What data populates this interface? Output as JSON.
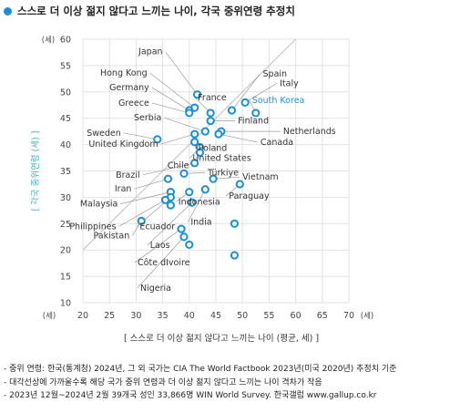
{
  "title": "스스로 더 이상 젊지 않다고 느끼는 나이, 각국 중위연령 추정치",
  "colors": {
    "accent": "#1a8fd6",
    "highlight": "#1a8fd6",
    "ylabel": "#3fb0c9",
    "grid": "#e2e2e2",
    "diagonal": "#c8c8c8"
  },
  "chart_data": {
    "type": "scatter",
    "xlabel": "[ 스스로 더 이상 젊지 않다고 느끼는 나이 (평균, 세) ]",
    "ylabel": "[ 각국 중위연령 (세) ]",
    "x_unit_label": "(세)",
    "y_unit_label": "(세)",
    "xlim": [
      20,
      70
    ],
    "ylim": [
      10,
      60
    ],
    "xticks": [
      "20",
      "25",
      "30",
      "35",
      "40",
      "45",
      "50",
      "55",
      "60",
      "65",
      "70"
    ],
    "yticks": [
      "10",
      "15",
      "20",
      "25",
      "30",
      "35",
      "40",
      "45",
      "50",
      "55",
      "60"
    ],
    "grid": true,
    "diagonal_reference": true,
    "points": [
      {
        "label": "Japan",
        "x": 41.5,
        "y": 49.5
      },
      {
        "label": "Hong Kong",
        "x": 41.0,
        "y": 47.0
      },
      {
        "label": "Germany",
        "x": 40.0,
        "y": 46.5
      },
      {
        "label": "Greece",
        "x": 40.0,
        "y": 46.0
      },
      {
        "label": "France",
        "x": 44.0,
        "y": 46.0
      },
      {
        "label": "Spain",
        "x": 48.0,
        "y": 46.5
      },
      {
        "label": "Italy",
        "x": 50.5,
        "y": 48.0
      },
      {
        "label": "South Korea",
        "x": 52.5,
        "y": 46.0,
        "highlight": true
      },
      {
        "label": "Finland",
        "x": 44.0,
        "y": 44.5
      },
      {
        "label": "Serbia",
        "x": 43.0,
        "y": 42.5
      },
      {
        "label": "Netherlands",
        "x": 46.0,
        "y": 42.5
      },
      {
        "label": "Canada",
        "x": 45.5,
        "y": 42.0
      },
      {
        "label": "Sweden",
        "x": 34.0,
        "y": 41.0
      },
      {
        "label": "United Kingdom",
        "x": 41.0,
        "y": 42.0
      },
      {
        "label": "Poland",
        "x": 41.0,
        "y": 40.5
      },
      {
        "label": "United States",
        "x": 42.0,
        "y": 39.5
      },
      {
        "label": "Chile",
        "x": 42.0,
        "y": 38.5
      },
      {
        "label": "Brazil",
        "x": 41.0,
        "y": 36.5
      },
      {
        "label": "Türkiye",
        "x": 39.0,
        "y": 34.5
      },
      {
        "label": "Vietnam",
        "x": 44.5,
        "y": 33.5
      },
      {
        "label": "Iran",
        "x": 36.0,
        "y": 33.5
      },
      {
        "label": "Paraguay",
        "x": 49.5,
        "y": 32.5
      },
      {
        "label": "Malaysia",
        "x": 36.5,
        "y": 31.0
      },
      {
        "label": "Indonesia",
        "x": 40.0,
        "y": 31.0
      },
      {
        "label": "Ecuador",
        "x": 36.5,
        "y": 30.0
      },
      {
        "label": "Philippines",
        "x": 35.5,
        "y": 29.5
      },
      {
        "label": "India",
        "x": 43.0,
        "y": 31.5
      },
      {
        "label": "Laos",
        "x": 40.5,
        "y": 29.0
      },
      {
        "label": "Pakistan",
        "x": 31.0,
        "y": 25.5
      },
      {
        "label": "Côte dIvoire",
        "x": 38.5,
        "y": 24.0
      },
      {
        "label": "Nigeria",
        "x": 39.0,
        "y": 22.5
      },
      {
        "label": "",
        "x": 36.5,
        "y": 28.5
      },
      {
        "label": "",
        "x": 48.5,
        "y": 25.0
      },
      {
        "label": "",
        "x": 48.5,
        "y": 19.0
      },
      {
        "label": "",
        "x": 40.0,
        "y": 21.0
      }
    ]
  },
  "notes": [
    "- 중위 연령: 한국(통계청) 2024년, 그 외 국가는 CIA The World Factbook 2023년(미국 2020년) 추정치 기준",
    "- 대각선상에 가까울수록 해당 국가 중위 연령과 더 이상 젊지 않다고 느끼는 나이 격차가 작음",
    "- 2023년 12월~2024년 2월 39개국 성인 33,866명 WIN World Survey. 한국갤럽 www.gallup.co.kr"
  ]
}
